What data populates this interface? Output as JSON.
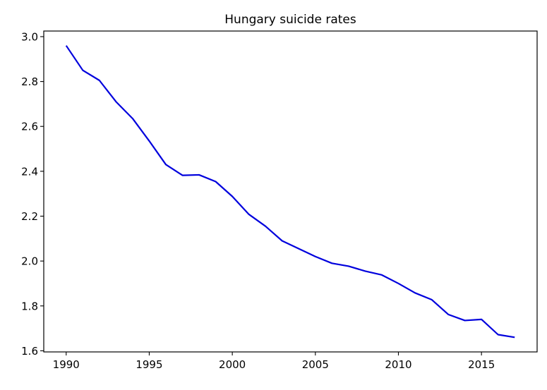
{
  "chart_data": {
    "type": "line",
    "title": "Hungary suicide rates",
    "xlabel": "",
    "ylabel": "",
    "xlim": [
      1988.65,
      2018.35
    ],
    "ylim": [
      1.595,
      3.025
    ],
    "grid": false,
    "x_ticks": [
      1990,
      1995,
      2000,
      2005,
      2010,
      2015
    ],
    "y_ticks": [
      1.6,
      1.8,
      2.0,
      2.2,
      2.4,
      2.6,
      2.8,
      3.0
    ],
    "x_tick_labels": [
      "1990",
      "1995",
      "2000",
      "2005",
      "2010",
      "2015"
    ],
    "y_tick_labels": [
      "1.6",
      "1.8",
      "2.0",
      "2.2",
      "2.4",
      "2.6",
      "2.8",
      "3.0"
    ],
    "series": [
      {
        "color": "#0000dd",
        "x": [
          1990,
          1991,
          1992,
          1993,
          1994,
          1995,
          1996,
          1997,
          1998,
          1999,
          2000,
          2001,
          2002,
          2003,
          2004,
          2005,
          2006,
          2007,
          2008,
          2009,
          2010,
          2011,
          2012,
          2013,
          2014,
          2015,
          2016,
          2017
        ],
        "y": [
          2.96,
          2.85,
          2.805,
          2.71,
          2.635,
          2.535,
          2.43,
          2.382,
          2.384,
          2.354,
          2.288,
          2.208,
          2.155,
          2.09,
          2.055,
          2.02,
          1.99,
          1.977,
          1.955,
          1.938,
          1.9,
          1.858,
          1.828,
          1.762,
          1.735,
          1.74,
          1.672,
          1.66
        ]
      }
    ]
  }
}
